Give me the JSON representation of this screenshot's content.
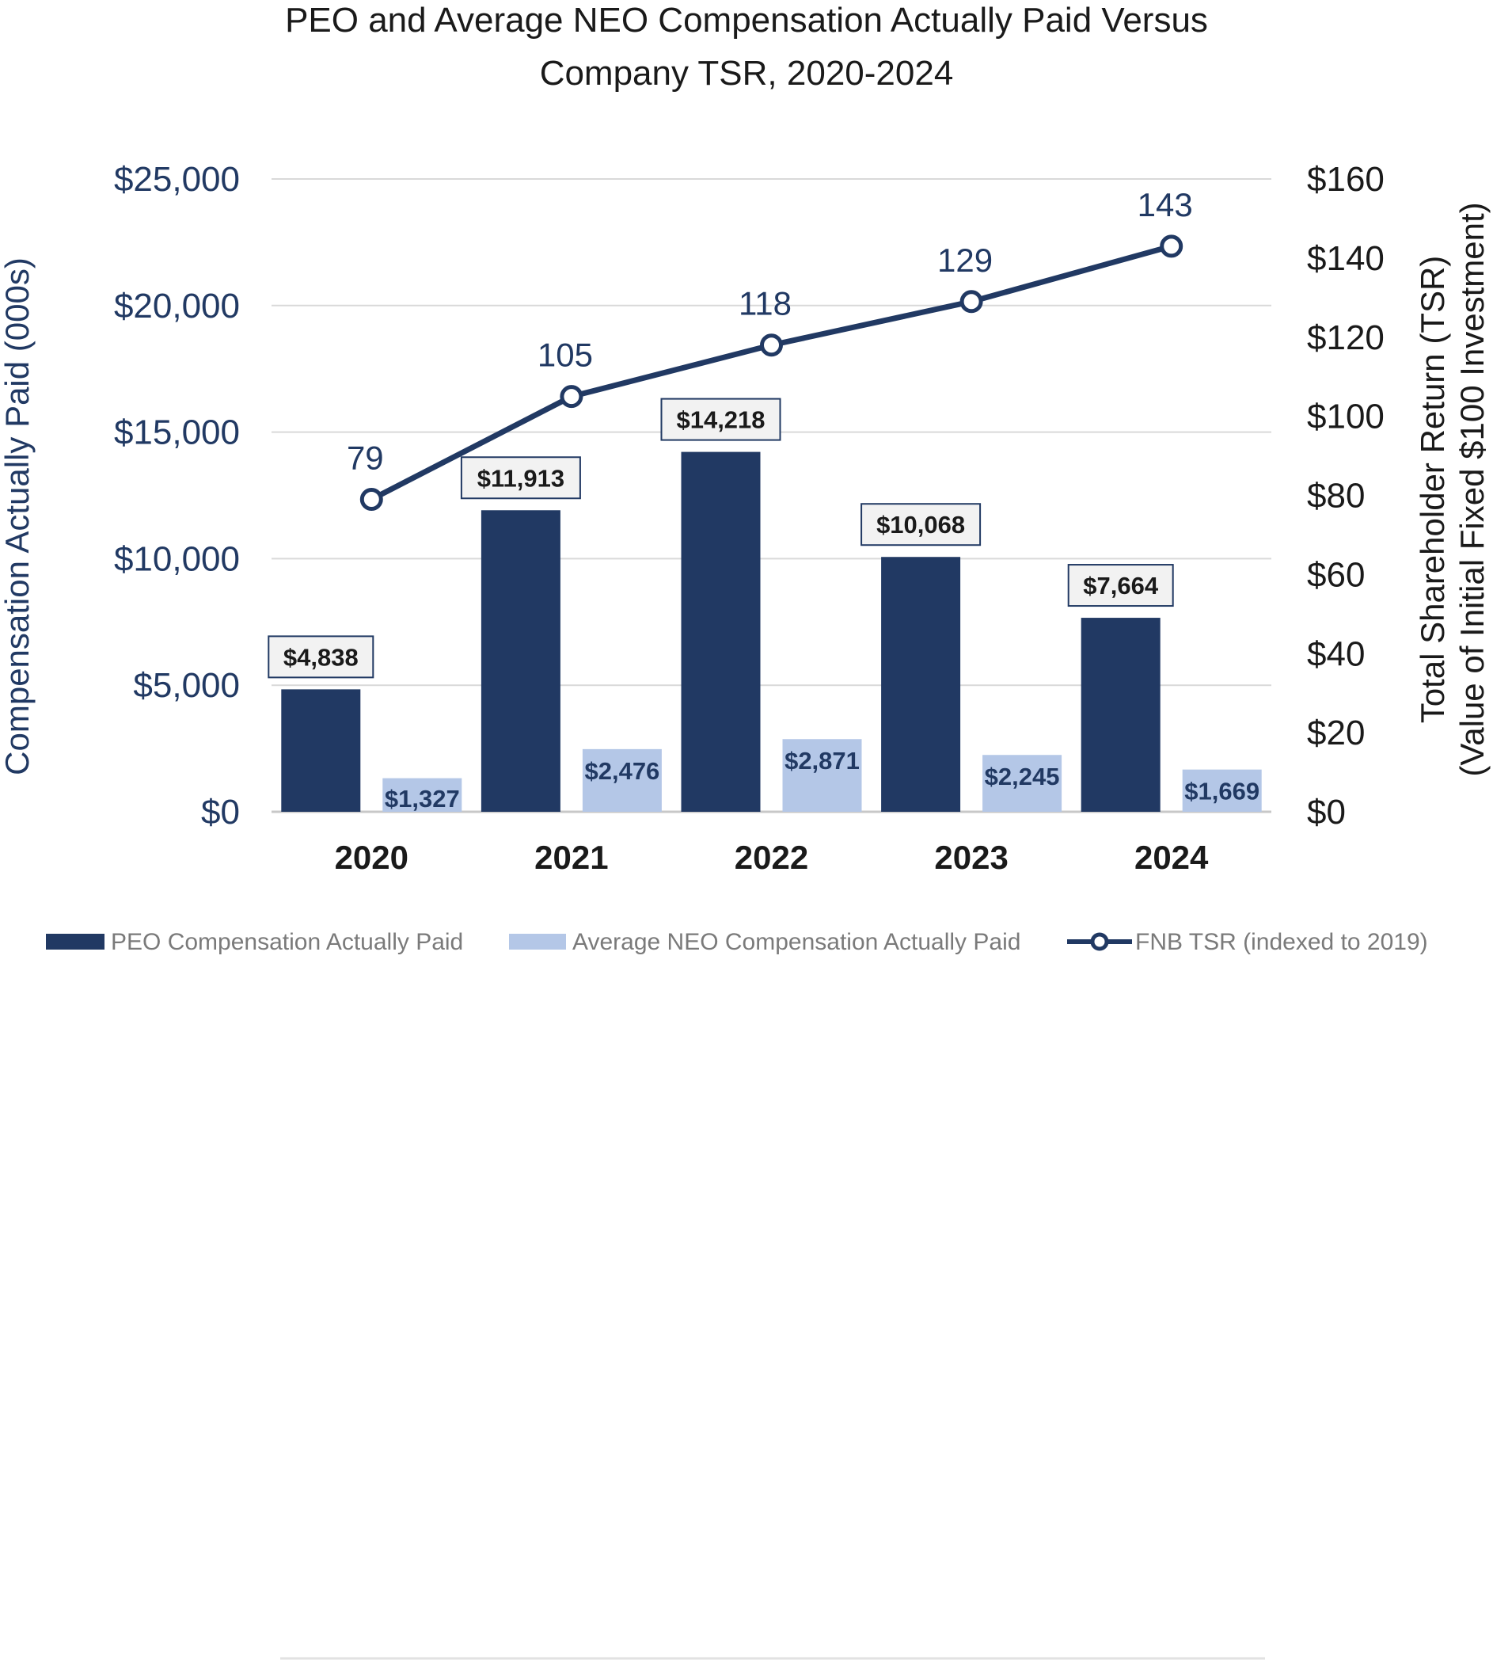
{
  "chart_data": {
    "type": "bar",
    "title_lines": [
      "PEO and Average NEO Compensation Actually Paid Versus",
      "Company TSR, 2020-2024"
    ],
    "categories": [
      "2020",
      "2021",
      "2022",
      "2023",
      "2024"
    ],
    "series": [
      {
        "name": "PEO Compensation Actually Paid",
        "type": "bar",
        "axis": "left",
        "color": "#213963",
        "values": [
          4838,
          11913,
          14218,
          10068,
          7664
        ],
        "labels": [
          "$4,838",
          "$11,913",
          "$14,218",
          "$10,068",
          "$7,664"
        ]
      },
      {
        "name": "Average NEO Compensation Actually Paid",
        "type": "bar",
        "axis": "left",
        "color": "#b4c7e7",
        "values": [
          1327,
          2476,
          2871,
          2245,
          1669
        ],
        "labels": [
          "$1,327",
          "$2,476",
          "$2,871",
          "$2,245",
          "$1,669"
        ]
      },
      {
        "name": "FNB TSR (indexed to 2019)",
        "type": "line",
        "axis": "right",
        "color": "#213963",
        "values": [
          79,
          105,
          118,
          129,
          143
        ],
        "labels": [
          "79",
          "105",
          "118",
          "129",
          "143"
        ]
      }
    ],
    "left_axis": {
      "label": "Compensation Actually Paid (000s)",
      "range": [
        0,
        25000
      ],
      "ticks": [
        0,
        5000,
        10000,
        15000,
        20000,
        25000
      ],
      "tick_labels": [
        "$0",
        "$5,000",
        "$10,000",
        "$15,000",
        "$20,000",
        "$25,000"
      ]
    },
    "right_axis": {
      "label_lines": [
        "Total Shareholder Return (TSR)",
        "(Value of Initial Fixed $100 Investment)"
      ],
      "range": [
        0,
        160
      ],
      "ticks": [
        0,
        20,
        40,
        60,
        80,
        100,
        120,
        140,
        160
      ],
      "tick_labels": [
        "$0",
        "$20",
        "$40",
        "$60",
        "$80",
        "$100",
        "$120",
        "$140",
        "$160"
      ]
    },
    "grid": true,
    "legend_position": "bottom"
  }
}
